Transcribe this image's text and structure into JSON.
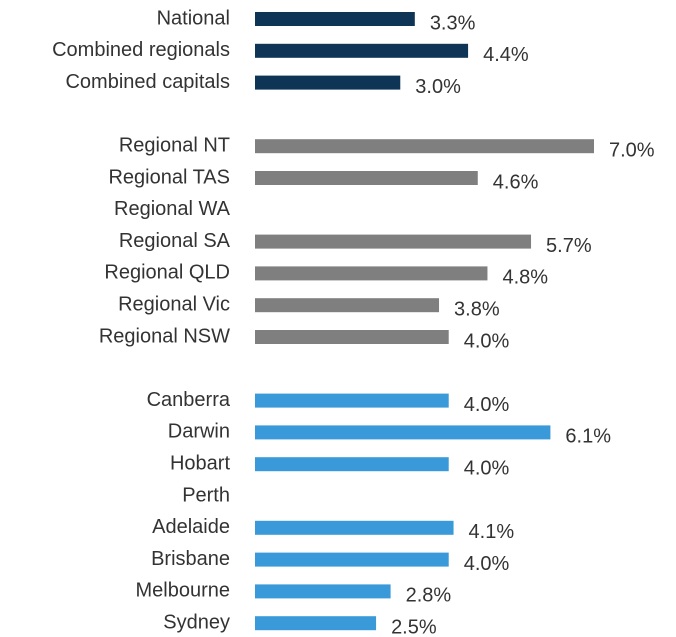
{
  "chart_data": {
    "type": "hbar",
    "categories": [
      "National",
      "Combined regionals",
      "Combined capitals",
      null,
      "Regional NT",
      "Regional TAS",
      "Regional WA",
      "Regional SA",
      "Regional QLD",
      "Regional Vic",
      "Regional NSW",
      null,
      "Canberra",
      "Darwin",
      "Hobart",
      "Perth",
      "Adelaide",
      "Brisbane",
      "Melbourne",
      "Sydney"
    ],
    "values": [
      3.3,
      4.4,
      3.0,
      null,
      7.0,
      4.6,
      null,
      5.7,
      4.8,
      3.8,
      4.0,
      null,
      4.0,
      6.1,
      4.0,
      null,
      4.1,
      4.0,
      2.8,
      2.5
    ],
    "value_labels": [
      "3.3%",
      "4.4%",
      "3.0%",
      null,
      "7.0%",
      "4.6%",
      null,
      "5.7%",
      "4.8%",
      "3.8%",
      "4.0%",
      null,
      "4.0%",
      "6.1%",
      "4.0%",
      null,
      "4.1%",
      "4.0%",
      "2.8%",
      "2.5%"
    ],
    "colors": [
      "#0f3556",
      "#0f3556",
      "#0f3556",
      null,
      "#7f7f7f",
      "#7f7f7f",
      "#7f7f7f",
      "#7f7f7f",
      "#7f7f7f",
      "#7f7f7f",
      "#7f7f7f",
      null,
      "#3a9ad9",
      "#3a9ad9",
      "#3a9ad9",
      "#3a9ad9",
      "#3a9ad9",
      "#3a9ad9",
      "#3a9ad9",
      "#3a9ad9"
    ]
  }
}
